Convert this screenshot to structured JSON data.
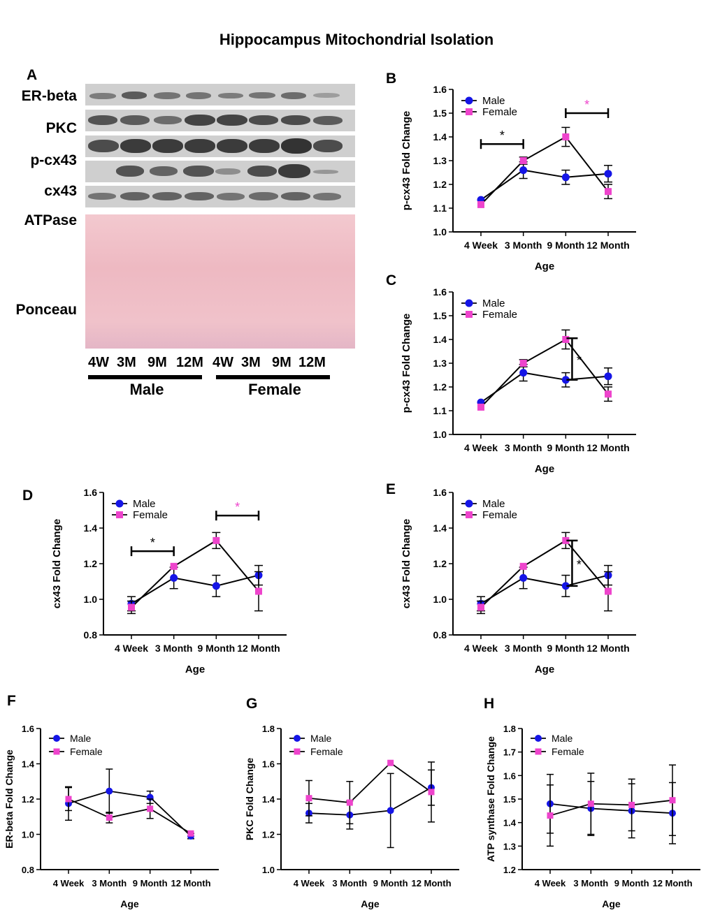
{
  "title": "Hippocampus Mitochondrial Isolation",
  "panel_a": {
    "letter": "A",
    "blot_labels": [
      "ER-beta",
      "PKC",
      "p-cx43",
      "cx43",
      "ATPase",
      "Ponceau"
    ],
    "lane_labels": [
      "4W",
      "3M",
      "9M",
      "12M",
      "4W",
      "3M",
      "9M",
      "12M"
    ],
    "groups": [
      "Male",
      "Female"
    ]
  },
  "colors": {
    "male": "#1515e6",
    "female": "#ee44cc",
    "bracket": "#000000"
  },
  "chart_data": [
    {
      "panel": "B",
      "type": "line",
      "ylabel": "p-cx43 Fold Change",
      "xlabel": "Age",
      "categories": [
        "4 Week",
        "3 Month",
        "9 Month",
        "12 Month"
      ],
      "ylim": [
        1.0,
        1.6
      ],
      "yticks": [
        "1.0",
        "1.1",
        "1.2",
        "1.3",
        "1.4",
        "1.5",
        "1.6"
      ],
      "legend": [
        "Male",
        "Female"
      ],
      "series": [
        {
          "name": "Male",
          "values": [
            1.135,
            1.26,
            1.23,
            1.245
          ],
          "errors": [
            0.0,
            0.035,
            0.03,
            0.035
          ]
        },
        {
          "name": "Female",
          "values": [
            1.115,
            1.3,
            1.4,
            1.17
          ],
          "errors": [
            0.0,
            0.015,
            0.04,
            0.03
          ]
        }
      ],
      "annotations": [
        {
          "type": "hbracket",
          "from": 0,
          "to": 1,
          "y": 1.37,
          "label": "*",
          "color": "black"
        },
        {
          "type": "hbracket",
          "from": 2,
          "to": 3,
          "y": 1.5,
          "label": "*",
          "color": "pink"
        }
      ]
    },
    {
      "panel": "C",
      "type": "line",
      "ylabel": "p-cx43 Fold Change",
      "xlabel": "Age",
      "categories": [
        "4 Week",
        "3 Month",
        "9 Month",
        "12 Month"
      ],
      "ylim": [
        1.0,
        1.6
      ],
      "yticks": [
        "1.0",
        "1.1",
        "1.2",
        "1.3",
        "1.4",
        "1.5",
        "1.6"
      ],
      "legend": [
        "Male",
        "Female"
      ],
      "series": [
        {
          "name": "Male",
          "values": [
            1.135,
            1.26,
            1.23,
            1.245
          ],
          "errors": [
            0.0,
            0.035,
            0.03,
            0.035
          ]
        },
        {
          "name": "Female",
          "values": [
            1.115,
            1.3,
            1.4,
            1.17
          ],
          "errors": [
            0.0,
            0.015,
            0.04,
            0.03
          ]
        }
      ],
      "annotations": [
        {
          "type": "vbracket",
          "x": 2.15,
          "y1": 1.23,
          "y2": 1.405,
          "label": "*",
          "color": "black"
        }
      ]
    },
    {
      "panel": "D",
      "type": "line",
      "ylabel": "cx43 Fold Change",
      "xlabel": "Age",
      "categories": [
        "4 Week",
        "3 Month",
        "9 Month",
        "12 Month"
      ],
      "ylim": [
        0.8,
        1.6
      ],
      "yticks": [
        "0.8",
        "1.0",
        "1.2",
        "1.4",
        "1.6"
      ],
      "legend": [
        "Male",
        "Female"
      ],
      "series": [
        {
          "name": "Male",
          "values": [
            0.975,
            1.12,
            1.075,
            1.135
          ],
          "errors": [
            0.04,
            0.06,
            0.06,
            0.055
          ]
        },
        {
          "name": "Female",
          "values": [
            0.955,
            1.185,
            1.33,
            1.045
          ],
          "errors": [
            0.035,
            0.0,
            0.045,
            0.11
          ]
        }
      ],
      "annotations": [
        {
          "type": "hbracket",
          "from": 0,
          "to": 1,
          "y": 1.27,
          "label": "*",
          "color": "black"
        },
        {
          "type": "hbracket",
          "from": 2,
          "to": 3,
          "y": 1.47,
          "label": "*",
          "color": "pink"
        }
      ]
    },
    {
      "panel": "E",
      "type": "line",
      "ylabel": "cx43 Fold Change",
      "xlabel": "Age",
      "categories": [
        "4 Week",
        "3 Month",
        "9 Month",
        "12 Month"
      ],
      "ylim": [
        0.8,
        1.6
      ],
      "yticks": [
        "0.8",
        "1.0",
        "1.2",
        "1.4",
        "1.6"
      ],
      "legend": [
        "Male",
        "Female"
      ],
      "series": [
        {
          "name": "Male",
          "values": [
            0.975,
            1.12,
            1.075,
            1.135
          ],
          "errors": [
            0.04,
            0.06,
            0.06,
            0.055
          ]
        },
        {
          "name": "Female",
          "values": [
            0.955,
            1.185,
            1.33,
            1.045
          ],
          "errors": [
            0.035,
            0.0,
            0.045,
            0.11
          ]
        }
      ],
      "annotations": [
        {
          "type": "vbracket",
          "x": 2.15,
          "y1": 1.075,
          "y2": 1.33,
          "label": "*",
          "color": "black"
        }
      ]
    },
    {
      "panel": "F",
      "type": "line",
      "ylabel": "ER-beta Fold Change",
      "xlabel": "Age",
      "categories": [
        "4 Week",
        "3 Month",
        "9 Month",
        "12 Month"
      ],
      "ylim": [
        0.8,
        1.6
      ],
      "yticks": [
        "0.8",
        "1.0",
        "1.2",
        "1.4",
        "1.6"
      ],
      "legend": [
        "Male",
        "Female"
      ],
      "series": [
        {
          "name": "Male",
          "values": [
            1.175,
            1.245,
            1.21,
            0.99
          ],
          "errors": [
            0.095,
            0.125,
            0.035,
            0.015
          ]
        },
        {
          "name": "Female",
          "values": [
            1.2,
            1.095,
            1.145,
            1.005
          ],
          "errors": [
            0.065,
            0.03,
            0.055,
            0.0
          ]
        }
      ],
      "annotations": []
    },
    {
      "panel": "G",
      "type": "line",
      "ylabel": "PKC Fold Change",
      "xlabel": "Age",
      "categories": [
        "4 Week",
        "3 Month",
        "9 Month",
        "12 Month"
      ],
      "ylim": [
        1.0,
        1.8
      ],
      "yticks": [
        "1.0",
        "1.2",
        "1.4",
        "1.6",
        "1.8"
      ],
      "legend": [
        "Male",
        "Female"
      ],
      "series": [
        {
          "name": "Male",
          "values": [
            1.32,
            1.31,
            1.335,
            1.465
          ],
          "errors": [
            0.055,
            0.08,
            0.21,
            0.1
          ]
        },
        {
          "name": "Female",
          "values": [
            1.405,
            1.38,
            1.605,
            1.44
          ],
          "errors": [
            0.1,
            0.12,
            0.0,
            0.17
          ]
        }
      ],
      "annotations": []
    },
    {
      "panel": "H",
      "type": "line",
      "ylabel": "ATP synthase Fold Change",
      "xlabel": "Age",
      "categories": [
        "4 Week",
        "3 Month",
        "9 Month",
        "12 Month"
      ],
      "ylim": [
        1.2,
        1.8
      ],
      "yticks": [
        "1.2",
        "1.3",
        "1.4",
        "1.5",
        "1.6",
        "1.7",
        "1.8"
      ],
      "legend": [
        "Male",
        "Female"
      ],
      "series": [
        {
          "name": "Male",
          "values": [
            1.48,
            1.46,
            1.45,
            1.44
          ],
          "errors": [
            0.125,
            0.115,
            0.115,
            0.13
          ]
        },
        {
          "name": "Female",
          "values": [
            1.43,
            1.48,
            1.475,
            1.495
          ],
          "errors": [
            0.13,
            0.13,
            0.11,
            0.15
          ]
        }
      ],
      "annotations": []
    }
  ]
}
